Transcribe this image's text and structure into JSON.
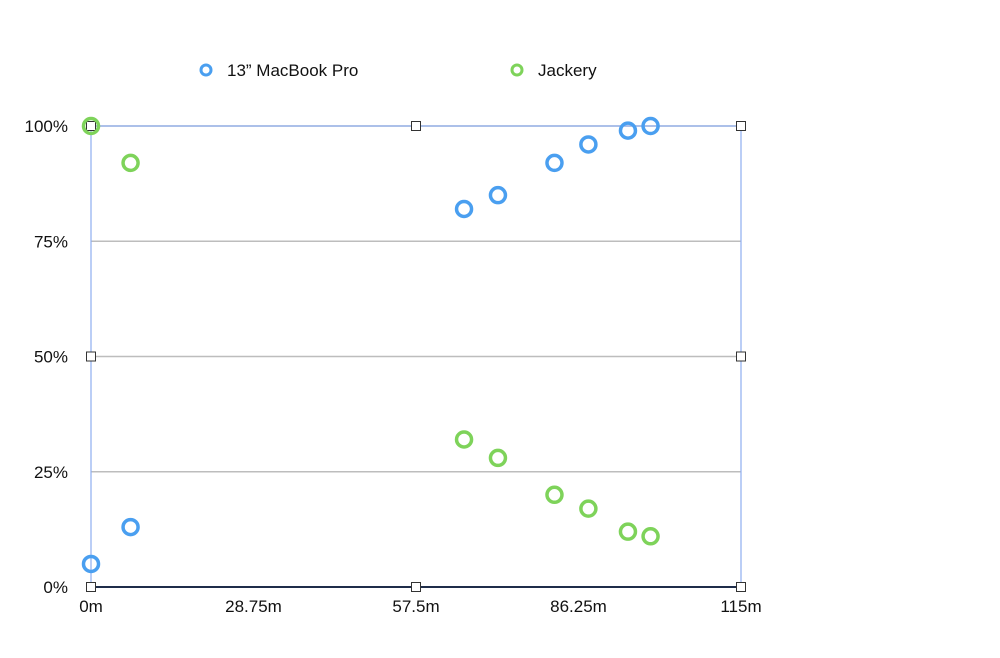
{
  "chart_data": {
    "type": "scatter",
    "x": {
      "ticks": [
        0,
        28.75,
        57.5,
        86.25,
        115
      ],
      "tick_labels": [
        "0m",
        "28.75m",
        "57.5m",
        "86.25m",
        "115m"
      ],
      "range": [
        0,
        115
      ]
    },
    "y": {
      "ticks": [
        0,
        25,
        50,
        75,
        100
      ],
      "tick_labels": [
        "0%",
        "25%",
        "50%",
        "75%",
        "100%"
      ],
      "range": [
        0,
        100
      ]
    },
    "grid": true,
    "legend": "top",
    "series": [
      {
        "name": "13” MacBook Pro",
        "color": "#4a9ff0",
        "points": [
          [
            0,
            5
          ],
          [
            7,
            13
          ],
          [
            66,
            82
          ],
          [
            72,
            85
          ],
          [
            82,
            92
          ],
          [
            88,
            96
          ],
          [
            95,
            99
          ],
          [
            99,
            100
          ]
        ]
      },
      {
        "name": "Jackery",
        "color": "#7ed35a",
        "points": [
          [
            0,
            100
          ],
          [
            7,
            92
          ],
          [
            66,
            32
          ],
          [
            72,
            28
          ],
          [
            82,
            20
          ],
          [
            88,
            17
          ],
          [
            95,
            12
          ],
          [
            99,
            11
          ]
        ]
      }
    ]
  }
}
